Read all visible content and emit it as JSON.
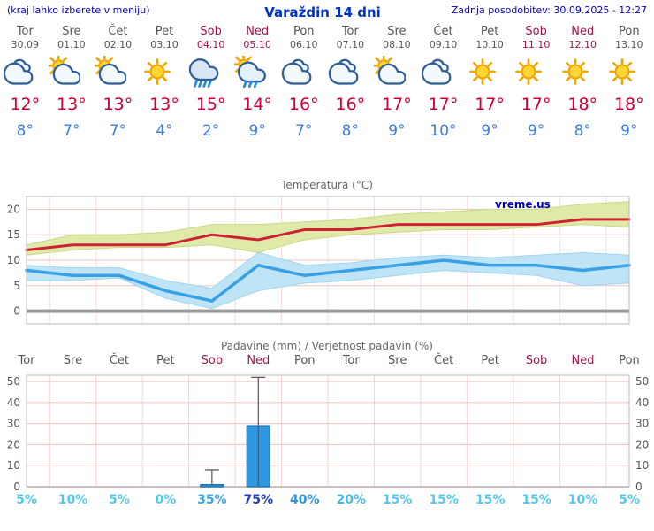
{
  "header": {
    "left_note": "(kraj lahko izberete v meniju)",
    "title": "Varaždin 14 dni",
    "updated": "Zadnja posodobitev: 30.09.2025 - 12:27"
  },
  "colors": {
    "accent_blue": "#0000bb",
    "tmax_red": "#cc0033",
    "tmin_blue": "#3d7edb",
    "weekend_red": "#a1134e",
    "weekday_gray": "#555555",
    "max_line": "#cc2233",
    "max_band": "#dfeaa8",
    "max_band_edge": "#c9d884",
    "min_line": "#38a0e4",
    "min_band": "#bfe4f6",
    "min_band_edge": "#9ed6f0",
    "bar_fill": "#2f97e0",
    "bar_stroke": "#1a6db0",
    "grid_pink": "#f0c2c2",
    "zero_line": "#999999"
  },
  "days": [
    {
      "name": "Tor",
      "date": "30.09",
      "icon": "cloudy",
      "tmax": "12°",
      "tmin": "8°",
      "weekend": false
    },
    {
      "name": "Sre",
      "date": "01.10",
      "icon": "partly",
      "tmax": "13°",
      "tmin": "7°",
      "weekend": false
    },
    {
      "name": "Čet",
      "date": "02.10",
      "icon": "partly",
      "tmax": "13°",
      "tmin": "7°",
      "weekend": false
    },
    {
      "name": "Pet",
      "date": "03.10",
      "icon": "sunny",
      "tmax": "13°",
      "tmin": "4°",
      "weekend": false
    },
    {
      "name": "Sob",
      "date": "04.10",
      "icon": "rain",
      "tmax": "15°",
      "tmin": "2°",
      "weekend": true
    },
    {
      "name": "Ned",
      "date": "05.10",
      "icon": "showers",
      "tmax": "14°",
      "tmin": "9°",
      "weekend": true
    },
    {
      "name": "Pon",
      "date": "06.10",
      "icon": "cloudy",
      "tmax": "16°",
      "tmin": "7°",
      "weekend": false
    },
    {
      "name": "Tor",
      "date": "07.10",
      "icon": "cloudy",
      "tmax": "16°",
      "tmin": "8°",
      "weekend": false
    },
    {
      "name": "Sre",
      "date": "08.10",
      "icon": "partly",
      "tmax": "17°",
      "tmin": "9°",
      "weekend": false
    },
    {
      "name": "Čet",
      "date": "09.10",
      "icon": "cloudy",
      "tmax": "17°",
      "tmin": "10°",
      "weekend": false
    },
    {
      "name": "Pet",
      "date": "10.10",
      "icon": "sunny",
      "tmax": "17°",
      "tmin": "9°",
      "weekend": false
    },
    {
      "name": "Sob",
      "date": "11.10",
      "icon": "sunny",
      "tmax": "17°",
      "tmin": "9°",
      "weekend": true
    },
    {
      "name": "Ned",
      "date": "12.10",
      "icon": "sunny",
      "tmax": "18°",
      "tmin": "8°",
      "weekend": true
    },
    {
      "name": "Pon",
      "date": "13.10",
      "icon": "sunny",
      "tmax": "18°",
      "tmin": "9°",
      "weekend": false
    }
  ],
  "chart_data": [
    {
      "type": "line",
      "title": "Temperatura (°C)",
      "watermark": "vreme.us",
      "categories": [
        "Tor 30.09",
        "Sre 01.10",
        "Čet 02.10",
        "Pet 03.10",
        "Sob 04.10",
        "Ned 05.10",
        "Pon 06.10",
        "Tor 07.10",
        "Sre 08.10",
        "Čet 09.10",
        "Pet 10.10",
        "Sob 11.10",
        "Ned 12.10",
        "Pon 13.10"
      ],
      "series": [
        {
          "name": "Najvišja temperatura",
          "values": [
            12,
            13,
            13,
            13,
            15,
            14,
            16,
            16,
            17,
            17,
            17,
            17,
            18,
            18
          ],
          "color": "#cc2233"
        },
        {
          "name": "Najvišja temperatura - zgornji razpon",
          "values": [
            13,
            15,
            15,
            15.5,
            17,
            17,
            17.5,
            18,
            19,
            19.5,
            20,
            20,
            21,
            21.5
          ]
        },
        {
          "name": "Najvišja temperatura - spodnji razpon",
          "values": [
            11,
            12,
            12.5,
            12.5,
            13,
            11.5,
            14,
            15,
            15.5,
            16,
            16,
            16.5,
            17,
            16.5
          ]
        },
        {
          "name": "Najnižja temperatura",
          "values": [
            8,
            7,
            7,
            4,
            2,
            9,
            7,
            8,
            9,
            10,
            9,
            9,
            8,
            9
          ],
          "color": "#38a0e4"
        },
        {
          "name": "Najnižja temperatura - zgornji razpon",
          "values": [
            9,
            8.5,
            8.5,
            6,
            4.5,
            11.5,
            9,
            9.5,
            10.5,
            11,
            10.5,
            11,
            11.5,
            11
          ]
        },
        {
          "name": "Najnižja temperatura - spodnji razpon",
          "values": [
            6,
            6,
            6.5,
            2.5,
            0.5,
            4,
            5.5,
            6,
            7,
            8,
            7.5,
            7,
            5,
            5.5
          ]
        }
      ],
      "yticks": [
        0,
        5,
        10,
        15,
        20
      ],
      "ylim": [
        -2.5,
        22.5
      ],
      "grid": true,
      "legend": "none"
    },
    {
      "type": "bar",
      "title": "Padavine (mm) / Verjetnost padavin (%)",
      "categories": [
        "Tor",
        "Sre",
        "Čet",
        "Pet",
        "Sob",
        "Ned",
        "Pon",
        "Tor",
        "Sre",
        "Čet",
        "Pet",
        "Sob",
        "Ned",
        "Pon"
      ],
      "weekend": [
        false,
        false,
        false,
        false,
        true,
        true,
        false,
        false,
        false,
        false,
        false,
        true,
        true,
        false
      ],
      "precip_mm": [
        0,
        0,
        0,
        0,
        1,
        29,
        0,
        0,
        0,
        0,
        0,
        0,
        0,
        0
      ],
      "precip_max_mm": [
        0,
        0,
        0,
        0,
        8,
        52,
        0,
        0,
        0,
        0,
        0,
        0,
        0,
        0
      ],
      "probability": [
        {
          "label": "5%",
          "color": "#55c8ee",
          "bold": false
        },
        {
          "label": "10%",
          "color": "#55c8ee",
          "bold": false
        },
        {
          "label": "5%",
          "color": "#55c8ee",
          "bold": false
        },
        {
          "label": "0%",
          "color": "#55c8ee",
          "bold": false
        },
        {
          "label": "35%",
          "color": "#3aa8e0",
          "bold": false
        },
        {
          "label": "75%",
          "color": "#1f3fbb",
          "bold": true
        },
        {
          "label": "40%",
          "color": "#2f95d8",
          "bold": false
        },
        {
          "label": "20%",
          "color": "#49b8e8",
          "bold": false
        },
        {
          "label": "15%",
          "color": "#55c8ee",
          "bold": false
        },
        {
          "label": "15%",
          "color": "#55c8ee",
          "bold": false
        },
        {
          "label": "15%",
          "color": "#55c8ee",
          "bold": false
        },
        {
          "label": "15%",
          "color": "#55c8ee",
          "bold": false
        },
        {
          "label": "10%",
          "color": "#55c8ee",
          "bold": false
        },
        {
          "label": "5%",
          "color": "#55c8ee",
          "bold": false
        }
      ],
      "yticks": [
        0,
        10,
        20,
        30,
        40,
        50
      ],
      "ylim": [
        0,
        53
      ],
      "grid": true,
      "legend": "none"
    }
  ]
}
